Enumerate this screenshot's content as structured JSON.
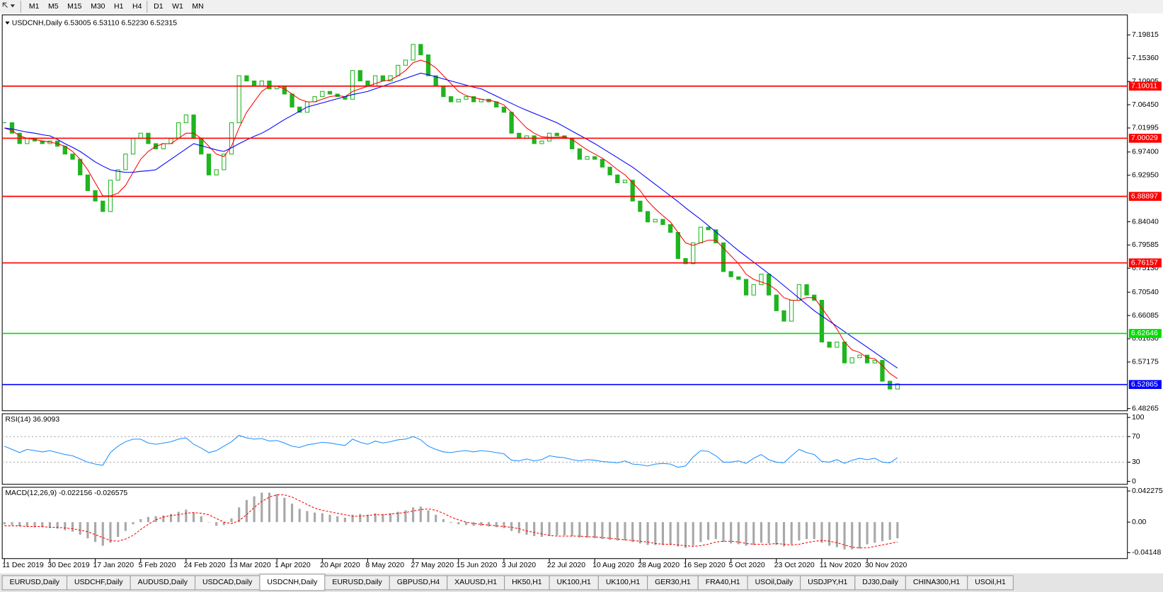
{
  "toolbar": [
    "M1",
    "M5",
    "M15",
    "M30",
    "H1",
    "H4",
    "D1",
    "W1",
    "MN"
  ],
  "tabs": {
    "items": [
      "EURUSD,Daily",
      "USDCHF,Daily",
      "AUDUSD,Daily",
      "USDCAD,Daily",
      "USDCNH,Daily",
      "EURUSD,Daily",
      "GBPUSD,H4",
      "XAUUSD,H1",
      "HK50,H1",
      "UK100,H1",
      "UK100,H1",
      "GER30,H1",
      "FRA40,H1",
      "USOil,Daily",
      "USDJPY,H1",
      "DJ30,Daily",
      "CHINA300,H1",
      "USOil,H1"
    ],
    "active": 4
  },
  "chart_data": {
    "type": "candlestick",
    "title": "USDCNH,Daily  6.53005 6.53110 6.52230 6.52315",
    "grid": false,
    "categories": [
      "11 Dec 2019",
      null,
      null,
      null,
      null,
      null,
      "30 Dec 2019",
      null,
      null,
      null,
      null,
      null,
      "17 Jan 2020",
      null,
      null,
      null,
      null,
      null,
      "5 Feb 2020",
      null,
      null,
      null,
      null,
      null,
      "24 Feb 2020",
      null,
      null,
      null,
      null,
      null,
      "13 Mar 2020",
      null,
      null,
      null,
      null,
      null,
      "1 Apr 2020",
      null,
      null,
      null,
      null,
      null,
      "20 Apr 2020",
      null,
      null,
      null,
      null,
      null,
      "8 May 2020",
      null,
      null,
      null,
      null,
      null,
      "27 May 2020",
      null,
      null,
      null,
      null,
      null,
      "15 Jun 2020",
      null,
      null,
      null,
      null,
      null,
      "3 Jul 2020",
      null,
      null,
      null,
      null,
      null,
      "22 Jul 2020",
      null,
      null,
      null,
      null,
      null,
      "10 Aug 2020",
      null,
      null,
      null,
      null,
      null,
      "28 Aug 2020",
      null,
      null,
      null,
      null,
      null,
      "16 Sep 2020",
      null,
      null,
      null,
      null,
      null,
      "5 Oct 2020",
      null,
      null,
      null,
      null,
      null,
      "23 Oct 2020",
      null,
      null,
      null,
      null,
      null,
      "11 Nov 2020",
      null,
      null,
      null,
      null,
      null,
      "30 Nov 2020",
      null,
      null,
      null,
      null
    ],
    "ylim": [
      6.4784,
      7.2366
    ],
    "yticks": [
      7.19815,
      {
        "value": 7.1536,
        "label": "7.15360"
      },
      7.10905,
      {
        "value": 7.0645,
        "label": "7.06450"
      },
      7.01995,
      {
        "value": 6.974,
        "label": "6.97400"
      },
      {
        "value": 6.9295,
        "label": "6.92950"
      },
      {
        "value": 6.8404,
        "label": "6.84040"
      },
      6.79585,
      {
        "value": 6.7513,
        "label": "6.75130"
      },
      {
        "value": 6.7054,
        "label": "6.70540"
      },
      6.66085,
      {
        "value": 6.6163,
        "label": "6.61630"
      },
      6.57175,
      6.48265
    ],
    "candles": {
      "up_color": "#1fb51f",
      "down_color": "#1fb51f",
      "values": [
        7.03,
        7.01,
        6.99,
        7.0,
        6.995,
        6.99,
        6.995,
        6.985,
        6.97,
        6.96,
        6.93,
        6.9,
        6.88,
        6.86,
        6.92,
        6.94,
        6.97,
        7.0,
        7.01,
        6.99,
        6.98,
        6.99,
        7.0,
        7.03,
        7.045,
        7.0,
        6.97,
        6.93,
        6.94,
        6.97,
        7.03,
        7.12,
        7.11,
        7.1,
        7.11,
        7.095,
        7.1,
        7.085,
        7.06,
        7.05,
        7.07,
        7.08,
        7.09,
        7.085,
        7.08,
        7.075,
        7.13,
        7.11,
        7.1,
        7.12,
        7.11,
        7.12,
        7.14,
        7.15,
        7.18,
        7.16,
        7.12,
        7.1,
        7.08,
        7.07,
        7.075,
        7.08,
        7.07,
        7.075,
        7.07,
        7.06,
        7.05,
        7.01,
        7.0,
        7.005,
        6.99,
        6.995,
        7.01,
        7.005,
        7.0,
        6.98,
        6.96,
        6.965,
        6.96,
        6.945,
        6.93,
        6.915,
        6.92,
        6.88,
        6.86,
        6.84,
        6.845,
        6.835,
        6.82,
        6.77,
        6.76,
        6.8,
        6.83,
        6.825,
        6.8,
        6.745,
        6.735,
        6.73,
        6.7,
        6.72,
        6.74,
        6.7,
        6.67,
        6.65,
        6.69,
        6.72,
        6.7,
        6.69,
        6.61,
        6.6,
        6.61,
        6.57,
        6.58,
        6.585,
        6.57,
        6.575,
        6.535,
        6.52,
        6.53
      ]
    },
    "moving_averages": [
      {
        "color": "#ff0000",
        "values": [
          7.02,
          7.015,
          7.005,
          7.0,
          6.998,
          6.995,
          6.993,
          6.99,
          6.985,
          6.975,
          6.96,
          6.94,
          6.915,
          6.89,
          6.89,
          6.895,
          6.91,
          6.935,
          6.96,
          6.975,
          6.985,
          6.99,
          6.99,
          7.0,
          7.01,
          7.01,
          7.0,
          6.985,
          6.97,
          6.965,
          6.985,
          7.02,
          7.05,
          7.07,
          7.09,
          7.1,
          7.1,
          7.095,
          7.085,
          7.075,
          7.07,
          7.07,
          7.075,
          7.08,
          7.082,
          7.08,
          7.09,
          7.095,
          7.1,
          7.105,
          7.11,
          7.112,
          7.12,
          7.13,
          7.145,
          7.15,
          7.145,
          7.135,
          7.12,
          7.105,
          7.09,
          7.082,
          7.078,
          7.075,
          7.073,
          7.07,
          7.064,
          7.05,
          7.035,
          7.02,
          7.01,
          7.003,
          7.002,
          7.002,
          7.003,
          6.998,
          6.988,
          6.978,
          6.97,
          6.962,
          6.952,
          6.94,
          6.93,
          6.915,
          6.9,
          6.88,
          6.865,
          6.852,
          6.84,
          6.82,
          6.8,
          6.795,
          6.8,
          6.805,
          6.805,
          6.79,
          6.775,
          6.76,
          6.74,
          6.73,
          6.725,
          6.72,
          6.71,
          6.695,
          6.69,
          6.69,
          6.695,
          6.695,
          6.675,
          6.655,
          6.635,
          6.61,
          6.595,
          6.59,
          6.58,
          6.578,
          6.565,
          6.55,
          6.54
        ]
      },
      {
        "color": "#0000ff",
        "values": [
          7.02,
          7.018,
          7.015,
          7.012,
          7.01,
          7.007,
          7.005,
          6.998,
          6.99,
          6.983,
          6.975,
          6.965,
          6.955,
          6.947,
          6.94,
          6.937,
          6.935,
          6.935,
          6.937,
          6.938,
          6.94,
          6.95,
          6.96,
          6.97,
          6.98,
          6.99,
          6.986,
          6.982,
          6.978,
          6.975,
          6.982,
          6.99,
          6.997,
          7.004,
          7.01,
          7.018,
          7.027,
          7.036,
          7.044,
          7.052,
          7.06,
          7.064,
          7.068,
          7.072,
          7.076,
          7.08,
          7.084,
          7.087,
          7.09,
          7.095,
          7.1,
          7.105,
          7.11,
          7.115,
          7.12,
          7.125,
          7.122,
          7.118,
          7.114,
          7.11,
          7.106,
          7.102,
          7.098,
          7.095,
          7.088,
          7.081,
          7.074,
          7.067,
          7.06,
          7.054,
          7.048,
          7.042,
          7.036,
          7.03,
          7.022,
          7.014,
          7.006,
          6.998,
          6.99,
          6.981,
          6.972,
          6.963,
          6.954,
          6.945,
          6.934,
          6.923,
          6.912,
          6.901,
          6.89,
          6.879,
          6.867,
          6.856,
          6.845,
          6.833,
          6.821,
          6.809,
          6.797,
          6.785,
          6.774,
          6.763,
          6.752,
          6.741,
          6.73,
          6.718,
          6.706,
          6.694,
          6.682,
          6.67,
          6.66,
          6.65,
          6.64,
          6.63,
          6.62,
          6.61,
          6.6,
          6.59,
          6.58,
          6.57,
          6.56
        ]
      }
    ],
    "levels": [
      {
        "value": 7.10011,
        "color": "#ff0000"
      },
      {
        "value": 7.00029,
        "color": "#ff0000"
      },
      {
        "value": 6.88897,
        "color": "#ff0000"
      },
      {
        "value": 6.76157,
        "color": "#ff0000"
      },
      {
        "value": 6.62646,
        "color": "#00dd00"
      },
      {
        "value": 6.52865,
        "color": "#0000ff"
      }
    ],
    "rsi": {
      "label": "RSI(14) 36.9093",
      "color": "#1e90ff",
      "grid": true,
      "ylim": [
        0,
        100
      ],
      "yticks": [
        100,
        70,
        30,
        0
      ],
      "values": [
        55,
        50,
        45,
        50,
        48,
        46,
        48,
        45,
        42,
        40,
        35,
        30,
        27,
        25,
        45,
        55,
        62,
        66,
        66,
        60,
        58,
        60,
        62,
        66,
        68,
        58,
        52,
        45,
        48,
        55,
        62,
        72,
        68,
        66,
        67,
        63,
        64,
        60,
        55,
        53,
        57,
        59,
        61,
        60,
        58,
        56,
        66,
        61,
        58,
        63,
        60,
        62,
        65,
        66,
        70,
        65,
        55,
        50,
        46,
        45,
        47,
        48,
        46,
        48,
        47,
        45,
        43,
        33,
        32,
        35,
        32,
        34,
        40,
        38,
        37,
        34,
        32,
        34,
        33,
        31,
        30,
        29,
        32,
        27,
        26,
        24,
        27,
        28,
        27,
        22,
        24,
        38,
        48,
        47,
        40,
        30,
        30,
        32,
        28,
        36,
        42,
        34,
        30,
        29,
        40,
        50,
        45,
        42,
        31,
        30,
        34,
        28,
        33,
        36,
        34,
        36,
        30,
        29,
        37
      ]
    },
    "macd": {
      "label": "MACD(12,26,9) -0.022156 -0.026575",
      "histogram_color": "#a8a8a8",
      "signal_color": "#ff0000",
      "ylim": [
        -0.0495,
        0.0473
      ],
      "yticks": [
        0.042275,
        {
          "value": 0,
          "label": "0.00"
        },
        -0.04148
      ],
      "histogram": [
        -0.003,
        -0.004,
        -0.006,
        -0.006,
        -0.007,
        -0.007,
        -0.008,
        -0.009,
        -0.011,
        -0.013,
        -0.017,
        -0.022,
        -0.027,
        -0.032,
        -0.028,
        -0.02,
        -0.012,
        -0.003,
        0.004,
        0.007,
        0.008,
        0.009,
        0.011,
        0.014,
        0.017,
        0.013,
        0.008,
        0.0,
        -0.005,
        -0.004,
        0.005,
        0.02,
        0.03,
        0.035,
        0.04,
        0.04,
        0.038,
        0.033,
        0.025,
        0.018,
        0.015,
        0.013,
        0.012,
        0.01,
        0.008,
        0.006,
        0.01,
        0.011,
        0.01,
        0.012,
        0.011,
        0.012,
        0.014,
        0.016,
        0.02,
        0.021,
        0.016,
        0.01,
        0.004,
        -0.001,
        -0.003,
        -0.004,
        -0.005,
        -0.005,
        -0.006,
        -0.007,
        -0.008,
        -0.012,
        -0.015,
        -0.017,
        -0.019,
        -0.02,
        -0.019,
        -0.018,
        -0.018,
        -0.019,
        -0.021,
        -0.021,
        -0.022,
        -0.023,
        -0.024,
        -0.025,
        -0.025,
        -0.027,
        -0.029,
        -0.031,
        -0.031,
        -0.031,
        -0.031,
        -0.033,
        -0.035,
        -0.032,
        -0.027,
        -0.024,
        -0.023,
        -0.027,
        -0.029,
        -0.03,
        -0.032,
        -0.031,
        -0.028,
        -0.029,
        -0.031,
        -0.033,
        -0.03,
        -0.025,
        -0.023,
        -0.023,
        -0.028,
        -0.032,
        -0.034,
        -0.037,
        -0.037,
        -0.036,
        -0.03,
        -0.028,
        -0.026,
        -0.024,
        -0.022
      ],
      "signal": [
        -0.005,
        -0.005,
        -0.005,
        -0.006,
        -0.006,
        -0.006,
        -0.007,
        -0.007,
        -0.008,
        -0.009,
        -0.011,
        -0.013,
        -0.017,
        -0.021,
        -0.025,
        -0.026,
        -0.023,
        -0.018,
        -0.01,
        -0.003,
        0.003,
        0.007,
        0.009,
        0.01,
        0.012,
        0.013,
        0.012,
        0.01,
        0.005,
        0.0,
        -0.002,
        0.002,
        0.01,
        0.02,
        0.028,
        0.034,
        0.037,
        0.037,
        0.034,
        0.029,
        0.024,
        0.019,
        0.016,
        0.014,
        0.012,
        0.01,
        0.008,
        0.008,
        0.009,
        0.01,
        0.01,
        0.011,
        0.012,
        0.013,
        0.015,
        0.017,
        0.018,
        0.016,
        0.012,
        0.007,
        0.003,
        0.0,
        -0.002,
        -0.003,
        -0.004,
        -0.005,
        -0.006,
        -0.007,
        -0.009,
        -0.012,
        -0.014,
        -0.016,
        -0.018,
        -0.019,
        -0.019,
        -0.019,
        -0.019,
        -0.02,
        -0.02,
        -0.021,
        -0.022,
        -0.023,
        -0.024,
        -0.025,
        -0.026,
        -0.027,
        -0.029,
        -0.03,
        -0.03,
        -0.031,
        -0.032,
        -0.033,
        -0.032,
        -0.03,
        -0.027,
        -0.026,
        -0.026,
        -0.027,
        -0.029,
        -0.03,
        -0.03,
        -0.03,
        -0.029,
        -0.03,
        -0.031,
        -0.03,
        -0.028,
        -0.026,
        -0.025,
        -0.026,
        -0.028,
        -0.031,
        -0.034,
        -0.035,
        -0.035,
        -0.033,
        -0.031,
        -0.029,
        -0.027
      ]
    }
  }
}
